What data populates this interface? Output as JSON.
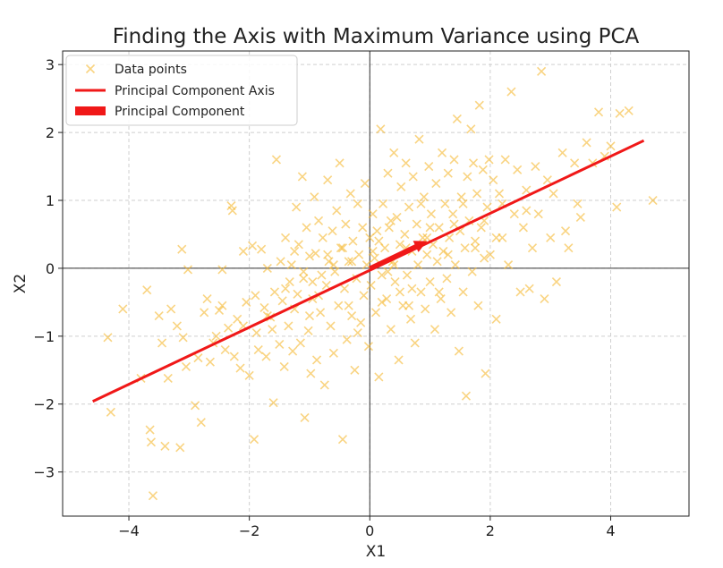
{
  "chart_data": {
    "type": "scatter",
    "title": "Finding the Axis with Maximum Variance using PCA",
    "xlabel": "X1",
    "ylabel": "X2",
    "xlim": [
      -5.1,
      5.3
    ],
    "ylim": [
      -3.65,
      3.2
    ],
    "xticks": [
      -4,
      -2,
      0,
      2,
      4
    ],
    "yticks": [
      -3,
      -2,
      -1,
      0,
      1,
      2,
      3
    ],
    "grid": true,
    "legend_position": "top-left",
    "legend": [
      {
        "label": "Data points",
        "kind": "marker"
      },
      {
        "label": "Principal Component Axis",
        "kind": "line"
      },
      {
        "label": "Principal Component",
        "kind": "patch"
      }
    ],
    "colors": {
      "points": "#f5b82e",
      "axis_line": "#f01818",
      "component_arrow": "#f01818",
      "zero_lines": "#333333"
    },
    "series": [
      {
        "name": "Data points",
        "marker": "x",
        "points": [
          [
            -4.35,
            -1.02
          ],
          [
            -4.3,
            -2.12
          ],
          [
            -4.1,
            -0.6
          ],
          [
            -3.8,
            -1.62
          ],
          [
            -3.7,
            -0.32
          ],
          [
            -3.65,
            -2.38
          ],
          [
            -3.63,
            -2.56
          ],
          [
            -3.6,
            -3.35
          ],
          [
            -3.5,
            -0.7
          ],
          [
            -3.45,
            -1.1
          ],
          [
            -3.4,
            -2.62
          ],
          [
            -3.35,
            -1.62
          ],
          [
            -3.3,
            -0.6
          ],
          [
            -3.2,
            -0.85
          ],
          [
            -3.15,
            -2.64
          ],
          [
            -3.12,
            0.28
          ],
          [
            -3.1,
            -1.02
          ],
          [
            -3.05,
            -1.45
          ],
          [
            -3.02,
            -0.02
          ],
          [
            -2.9,
            -2.02
          ],
          [
            -2.85,
            -1.32
          ],
          [
            -2.8,
            -2.27
          ],
          [
            -2.75,
            -0.65
          ],
          [
            -2.7,
            -0.45
          ],
          [
            -2.65,
            -1.38
          ],
          [
            -2.6,
            -1.1
          ],
          [
            -2.5,
            -0.62
          ],
          [
            -2.45,
            -0.02
          ],
          [
            -2.4,
            -1.2
          ],
          [
            -2.35,
            -0.88
          ],
          [
            -2.3,
            0.92
          ],
          [
            -2.28,
            0.85
          ],
          [
            -2.25,
            -1.3
          ],
          [
            -2.2,
            -0.75
          ],
          [
            -2.15,
            -1.47
          ],
          [
            -2.1,
            0.25
          ],
          [
            -2.05,
            -0.5
          ],
          [
            -2.0,
            -1.58
          ],
          [
            -1.95,
            0.33
          ],
          [
            -1.92,
            -2.52
          ],
          [
            -1.88,
            -0.95
          ],
          [
            -1.85,
            -1.2
          ],
          [
            -1.8,
            0.28
          ],
          [
            -1.75,
            -0.58
          ],
          [
            -1.72,
            -1.3
          ],
          [
            -1.7,
            0.0
          ],
          [
            -1.65,
            -0.72
          ],
          [
            -1.6,
            -1.98
          ],
          [
            -1.58,
            -0.35
          ],
          [
            -1.55,
            1.6
          ],
          [
            -1.5,
            -1.12
          ],
          [
            -1.48,
            0.1
          ],
          [
            -1.45,
            -0.48
          ],
          [
            -1.42,
            -1.45
          ],
          [
            -1.4,
            0.45
          ],
          [
            -1.35,
            -0.85
          ],
          [
            -1.33,
            -0.2
          ],
          [
            -1.3,
            0.05
          ],
          [
            -1.28,
            -1.22
          ],
          [
            -1.25,
            -0.6
          ],
          [
            -1.22,
            0.9
          ],
          [
            -1.2,
            -0.38
          ],
          [
            -1.18,
            0.35
          ],
          [
            -1.15,
            -1.1
          ],
          [
            -1.12,
            1.35
          ],
          [
            -1.1,
            -0.15
          ],
          [
            -1.08,
            -2.2
          ],
          [
            -1.05,
            0.6
          ],
          [
            -1.02,
            -0.92
          ],
          [
            -1.0,
            0.18
          ],
          [
            -0.98,
            -1.55
          ],
          [
            -0.95,
            -0.45
          ],
          [
            -0.92,
            1.05
          ],
          [
            -0.9,
            0.22
          ],
          [
            -0.88,
            -1.35
          ],
          [
            -0.85,
            0.7
          ],
          [
            -0.82,
            -0.65
          ],
          [
            -0.8,
            -0.1
          ],
          [
            -0.78,
            0.45
          ],
          [
            -0.75,
            -1.72
          ],
          [
            -0.72,
            -0.25
          ],
          [
            -0.7,
            1.3
          ],
          [
            -0.68,
            0.1
          ],
          [
            -0.65,
            -0.85
          ],
          [
            -0.62,
            0.55
          ],
          [
            -0.6,
            -1.25
          ],
          [
            -0.58,
            -0.05
          ],
          [
            -0.55,
            0.85
          ],
          [
            -0.52,
            -0.55
          ],
          [
            -0.5,
            1.55
          ],
          [
            -0.48,
            0.3
          ],
          [
            -0.45,
            -2.52
          ],
          [
            -0.42,
            -0.3
          ],
          [
            -0.4,
            0.65
          ],
          [
            -0.38,
            -1.05
          ],
          [
            -0.35,
            0.1
          ],
          [
            -0.32,
            1.1
          ],
          [
            -0.3,
            -0.7
          ],
          [
            -0.28,
            0.4
          ],
          [
            -0.25,
            -1.5
          ],
          [
            -0.22,
            -0.15
          ],
          [
            -0.2,
            0.95
          ],
          [
            -0.18,
            0.2
          ],
          [
            -0.15,
            -0.8
          ],
          [
            -0.12,
            0.6
          ],
          [
            -0.1,
            -0.4
          ],
          [
            -0.08,
            1.25
          ],
          [
            -0.05,
            0.05
          ],
          [
            -0.02,
            -1.15
          ],
          [
            0.0,
            0.45
          ],
          [
            0.02,
            -0.25
          ],
          [
            0.05,
            0.8
          ],
          [
            0.08,
            0.15
          ],
          [
            0.1,
            -0.65
          ],
          [
            0.12,
            0.55
          ],
          [
            0.15,
            -1.6
          ],
          [
            0.18,
            2.05
          ],
          [
            0.2,
            -0.1
          ],
          [
            0.22,
            0.95
          ],
          [
            0.25,
            0.3
          ],
          [
            0.28,
            -0.45
          ],
          [
            0.3,
            1.4
          ],
          [
            0.32,
            0.6
          ],
          [
            0.35,
            -0.9
          ],
          [
            0.38,
            0.1
          ],
          [
            0.4,
            1.7
          ],
          [
            0.42,
            -0.2
          ],
          [
            0.45,
            0.75
          ],
          [
            0.48,
            -1.35
          ],
          [
            0.5,
            0.35
          ],
          [
            0.52,
            1.2
          ],
          [
            0.55,
            -0.55
          ],
          [
            0.58,
            0.5
          ],
          [
            0.6,
            1.55
          ],
          [
            0.62,
            -0.1
          ],
          [
            0.65,
            0.9
          ],
          [
            0.68,
            -0.75
          ],
          [
            0.7,
            0.25
          ],
          [
            0.72,
            1.35
          ],
          [
            0.75,
            -1.1
          ],
          [
            0.78,
            0.65
          ],
          [
            0.8,
            0.05
          ],
          [
            0.82,
            1.9
          ],
          [
            0.85,
            -0.35
          ],
          [
            0.88,
            0.45
          ],
          [
            0.9,
            1.05
          ],
          [
            0.92,
            -0.6
          ],
          [
            0.95,
            0.2
          ],
          [
            0.98,
            1.5
          ],
          [
            1.0,
            -0.2
          ],
          [
            1.02,
            0.8
          ],
          [
            1.05,
            0.35
          ],
          [
            1.08,
            -0.9
          ],
          [
            1.1,
            1.25
          ],
          [
            1.12,
            0.1
          ],
          [
            1.15,
            0.6
          ],
          [
            1.18,
            -0.45
          ],
          [
            1.2,
            1.7
          ],
          [
            1.22,
            0.25
          ],
          [
            1.25,
            0.95
          ],
          [
            1.28,
            -0.15
          ],
          [
            1.3,
            1.4
          ],
          [
            1.32,
            0.45
          ],
          [
            1.35,
            -0.65
          ],
          [
            1.38,
            0.8
          ],
          [
            1.4,
            1.6
          ],
          [
            1.42,
            0.05
          ],
          [
            1.45,
            2.2
          ],
          [
            1.48,
            -1.22
          ],
          [
            1.5,
            0.55
          ],
          [
            1.52,
            1.05
          ],
          [
            1.55,
            -0.35
          ],
          [
            1.58,
            0.3
          ],
          [
            1.6,
            -1.88
          ],
          [
            1.62,
            1.35
          ],
          [
            1.65,
            0.7
          ],
          [
            1.68,
            2.05
          ],
          [
            1.7,
            -0.05
          ],
          [
            1.72,
            1.55
          ],
          [
            1.75,
            0.4
          ],
          [
            1.78,
            1.1
          ],
          [
            1.8,
            -0.55
          ],
          [
            1.82,
            2.4
          ],
          [
            1.85,
            0.6
          ],
          [
            1.88,
            1.45
          ],
          [
            1.9,
            0.15
          ],
          [
            1.92,
            -1.55
          ],
          [
            1.95,
            0.9
          ],
          [
            1.98,
            1.6
          ],
          [
            2.0,
            0.2
          ],
          [
            2.05,
            1.3
          ],
          [
            2.1,
            -0.75
          ],
          [
            2.15,
            1.1
          ],
          [
            2.2,
            0.45
          ],
          [
            2.25,
            1.6
          ],
          [
            2.3,
            0.05
          ],
          [
            2.35,
            2.6
          ],
          [
            2.4,
            0.8
          ],
          [
            2.45,
            1.45
          ],
          [
            2.5,
            -0.35
          ],
          [
            2.55,
            0.6
          ],
          [
            2.6,
            1.15
          ],
          [
            2.65,
            -0.3
          ],
          [
            2.7,
            0.3
          ],
          [
            2.75,
            1.5
          ],
          [
            2.8,
            0.8
          ],
          [
            2.85,
            2.9
          ],
          [
            2.9,
            -0.45
          ],
          [
            2.95,
            1.3
          ],
          [
            3.0,
            0.45
          ],
          [
            3.05,
            1.1
          ],
          [
            3.1,
            -0.2
          ],
          [
            3.2,
            1.7
          ],
          [
            3.25,
            0.55
          ],
          [
            3.3,
            0.3
          ],
          [
            3.4,
            1.55
          ],
          [
            3.45,
            0.95
          ],
          [
            3.5,
            0.75
          ],
          [
            3.6,
            1.85
          ],
          [
            3.7,
            1.55
          ],
          [
            3.8,
            2.3
          ],
          [
            3.9,
            1.65
          ],
          [
            4.0,
            1.8
          ],
          [
            4.1,
            0.9
          ],
          [
            4.15,
            2.28
          ],
          [
            4.3,
            2.32
          ],
          [
            4.7,
            1.0
          ],
          [
            -2.55,
            -1.0
          ],
          [
            -1.62,
            -0.9
          ],
          [
            -0.6,
            0.05
          ],
          [
            0.3,
            -0.05
          ],
          [
            1.0,
            0.6
          ],
          [
            -1.9,
            -0.4
          ],
          [
            -0.35,
            -0.55
          ],
          [
            0.6,
            0.3
          ],
          [
            1.3,
            0.2
          ],
          [
            2.2,
            0.95
          ],
          [
            -0.95,
            -0.2
          ],
          [
            0.05,
            0.25
          ],
          [
            -2.45,
            -0.55
          ],
          [
            -1.0,
            -0.7
          ],
          [
            0.95,
            0.45
          ],
          [
            -0.2,
            -0.95
          ],
          [
            0.7,
            -0.3
          ],
          [
            1.55,
            0.95
          ],
          [
            -1.4,
            -0.3
          ],
          [
            0.4,
            0.05
          ],
          [
            -0.7,
            0.2
          ],
          [
            0.15,
            0.4
          ],
          [
            1.15,
            -0.35
          ],
          [
            -1.1,
            -0.05
          ],
          [
            0.5,
            -0.35
          ],
          [
            2.6,
            0.85
          ],
          [
            -1.7,
            -0.7
          ],
          [
            -0.45,
            0.3
          ],
          [
            0.85,
            0.95
          ],
          [
            1.75,
            0.3
          ],
          [
            -2.1,
            -0.85
          ],
          [
            -0.3,
            0.1
          ],
          [
            0.2,
            -0.5
          ],
          [
            1.4,
            0.65
          ],
          [
            -0.85,
            -0.4
          ],
          [
            0.65,
            -0.55
          ],
          [
            1.9,
            0.7
          ],
          [
            -1.25,
            0.25
          ],
          [
            0.35,
            0.7
          ],
          [
            2.1,
            0.45
          ]
        ]
      },
      {
        "name": "Principal Component Axis",
        "type": "line",
        "points": [
          [
            -4.6,
            -1.96
          ],
          [
            4.55,
            1.88
          ]
        ]
      },
      {
        "name": "Principal Component",
        "type": "arrow",
        "from": [
          0.0,
          0.0
        ],
        "to": [
          0.95,
          0.4
        ]
      }
    ]
  }
}
